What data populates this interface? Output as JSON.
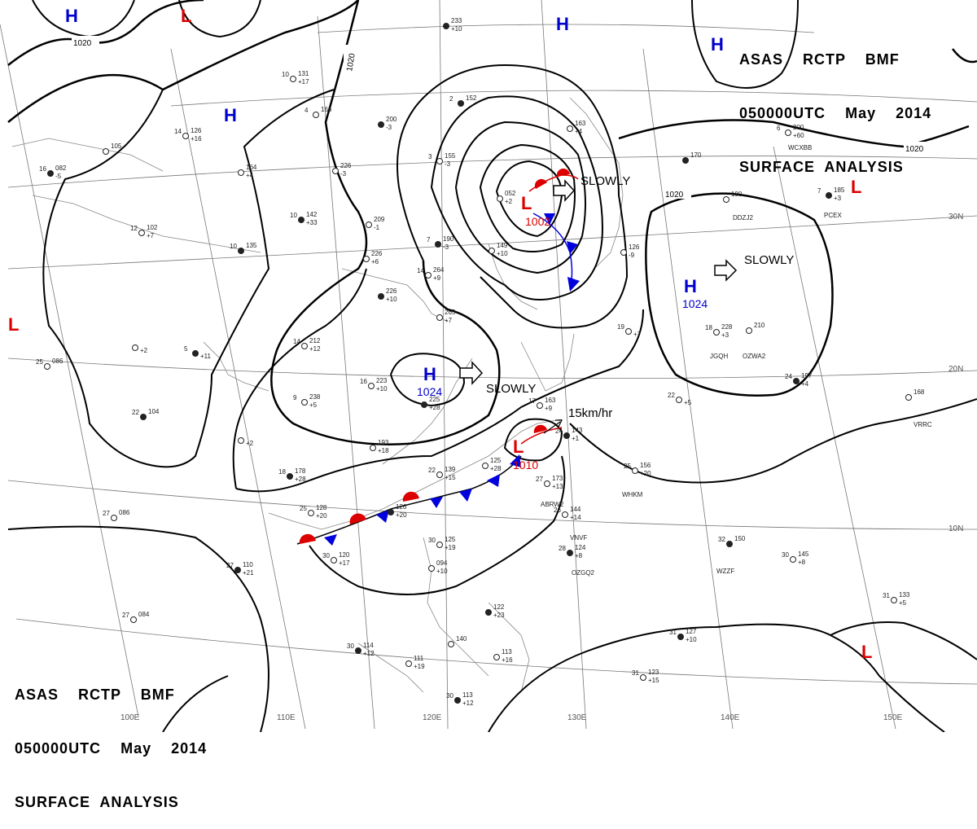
{
  "header": {
    "line1": [
      "ASAS",
      "RCTP",
      "BMF"
    ],
    "line2": [
      "050000UTC",
      "May",
      "2014"
    ],
    "line3": "SURFACE  ANALYSIS"
  },
  "grid_labels": {
    "lon": [
      "100E",
      "110E",
      "120E",
      "130E",
      "140E",
      "150E"
    ],
    "lat": [
      "30N",
      "20N",
      "10N"
    ]
  },
  "isobar_labels": [
    "1020",
    "1020",
    "1020",
    "1020"
  ],
  "systems": [
    {
      "type": "H",
      "value": ""
    },
    {
      "type": "H",
      "value": ""
    },
    {
      "type": "H",
      "value": ""
    },
    {
      "type": "H",
      "value": ""
    },
    {
      "type": "H",
      "value": "1024",
      "motion": "SLOWLY"
    },
    {
      "type": "H",
      "value": "1024",
      "motion": "SLOWLY"
    },
    {
      "type": "L",
      "value": "1002",
      "motion": "SLOWLY"
    },
    {
      "type": "L",
      "value": "1010",
      "motion": "15km/hr"
    },
    {
      "type": "L",
      "value": ""
    },
    {
      "type": "L",
      "value": ""
    },
    {
      "type": "L",
      "value": ""
    },
    {
      "type": "L",
      "value": ""
    }
  ],
  "stations": [
    {
      "left": "",
      "right": "233",
      "sub": "+10"
    },
    {
      "left": "10",
      "right": "131",
      "sub": "+17"
    },
    {
      "left": "4",
      "right": "166",
      "sub": ""
    },
    {
      "left": "",
      "right": "200",
      "sub": "-3"
    },
    {
      "left": "14",
      "right": "126",
      "sub": "+16"
    },
    {
      "left": "",
      "right": "105",
      "sub": ""
    },
    {
      "left": "16",
      "right": "082",
      "sub": "-5"
    },
    {
      "left": "",
      "right": "164",
      "sub": "+4"
    },
    {
      "left": "",
      "right": "226",
      "sub": "-3"
    },
    {
      "left": "10",
      "right": "142",
      "sub": "+33"
    },
    {
      "left": "",
      "right": "209",
      "sub": "-1"
    },
    {
      "left": "12",
      "right": "102",
      "sub": "+7"
    },
    {
      "left": "10",
      "right": "135",
      "sub": ""
    },
    {
      "left": "",
      "right": "226",
      "sub": "+6"
    },
    {
      "left": "14",
      "right": "264",
      "sub": "+9"
    },
    {
      "left": "7",
      "right": "190",
      "sub": "-3"
    },
    {
      "left": "",
      "right": "149",
      "sub": "+10"
    },
    {
      "left": "3",
      "right": "155",
      "sub": "-3"
    },
    {
      "left": "2",
      "right": "152",
      "sub": ""
    },
    {
      "left": "",
      "right": "052",
      "sub": "+2"
    },
    {
      "left": "",
      "right": "163",
      "sub": "+4"
    },
    {
      "left": "",
      "right": "226",
      "sub": "+10"
    },
    {
      "left": "",
      "right": "265",
      "sub": "+7"
    },
    {
      "left": "14",
      "right": "212",
      "sub": "+12"
    },
    {
      "left": "5",
      "right": "",
      "sub": "+11"
    },
    {
      "left": "",
      "right": "",
      "sub": "+2"
    },
    {
      "left": "25",
      "right": "086",
      "sub": ""
    },
    {
      "left": "22",
      "right": "104",
      "sub": ""
    },
    {
      "left": "9",
      "right": "238",
      "sub": "+5"
    },
    {
      "left": "16",
      "right": "223",
      "sub": "+10"
    },
    {
      "left": "",
      "right": "225",
      "sub": "+28"
    },
    {
      "left": "",
      "right": "193",
      "sub": "+18"
    },
    {
      "left": "",
      "right": "",
      "sub": "+2"
    },
    {
      "left": "18",
      "right": "178",
      "sub": "+28"
    },
    {
      "left": "25",
      "right": "128",
      "sub": "+20"
    },
    {
      "left": "22",
      "right": "139",
      "sub": "+15"
    },
    {
      "left": "",
      "right": "126",
      "sub": "+20"
    },
    {
      "left": "",
      "right": "125",
      "sub": "+28"
    },
    {
      "left": "27",
      "right": "086",
      "sub": ""
    },
    {
      "left": "27",
      "right": "110",
      "sub": "+21"
    },
    {
      "left": "30",
      "right": "120",
      "sub": "+17"
    },
    {
      "left": "27",
      "right": "084",
      "sub": ""
    },
    {
      "left": "30",
      "right": "114",
      "sub": "+12"
    },
    {
      "left": "30",
      "right": "125",
      "sub": "+19"
    },
    {
      "left": "",
      "right": "094",
      "sub": "+10"
    },
    {
      "left": "",
      "right": "122",
      "sub": "+23"
    },
    {
      "left": "",
      "right": "140",
      "sub": ""
    },
    {
      "left": "",
      "right": "113",
      "sub": "+16"
    },
    {
      "left": "30",
      "right": "113",
      "sub": "+12"
    },
    {
      "left": "",
      "right": "111",
      "sub": "+19"
    },
    {
      "left": "17",
      "right": "163",
      "sub": "+9"
    },
    {
      "left": "24",
      "right": "143",
      "sub": "+1"
    },
    {
      "left": "27",
      "right": "173",
      "sub": "+13"
    },
    {
      "left": "26",
      "right": "144",
      "sub": "+14"
    },
    {
      "left": "28",
      "right": "124",
      "sub": "+8"
    },
    {
      "left": "25",
      "right": "156",
      "sub": "+20"
    },
    {
      "left": "",
      "right": "126",
      "sub": "-9"
    },
    {
      "left": "",
      "right": "170",
      "sub": ""
    },
    {
      "left": "",
      "right": "180",
      "sub": ""
    },
    {
      "left": "6",
      "right": "200",
      "sub": "+60"
    },
    {
      "left": "7",
      "right": "185",
      "sub": "+3"
    },
    {
      "left": "18",
      "right": "228",
      "sub": "+3"
    },
    {
      "left": "",
      "right": "210",
      "sub": ""
    },
    {
      "left": "24",
      "right": "197",
      "sub": "+4"
    },
    {
      "left": "22",
      "right": "",
      "sub": "+5"
    },
    {
      "left": "",
      "right": "168",
      "sub": ""
    },
    {
      "left": "32",
      "right": "150",
      "sub": ""
    },
    {
      "left": "30",
      "right": "145",
      "sub": "+8"
    },
    {
      "left": "31",
      "right": "133",
      "sub": "+5"
    },
    {
      "left": "31",
      "right": "127",
      "sub": "+10"
    },
    {
      "left": "31",
      "right": "123",
      "sub": "+15"
    },
    {
      "left": "19",
      "right": "",
      "sub": "+7"
    }
  ],
  "ship_ids": [
    "WCXBB",
    "PCEX",
    "DDZJ2",
    "JGQH",
    "OZWA2",
    "VRRC",
    "WHKM",
    "ABRW2",
    "VNVF",
    "OZGQ2",
    "WZZF"
  ],
  "colors": {
    "high": "#0000cc",
    "low": "#dd0000",
    "cold_front": "#0000dd",
    "warm_front": "#dd0000",
    "isobar": "#000000",
    "grid": "#777777",
    "coast": "#888888"
  }
}
